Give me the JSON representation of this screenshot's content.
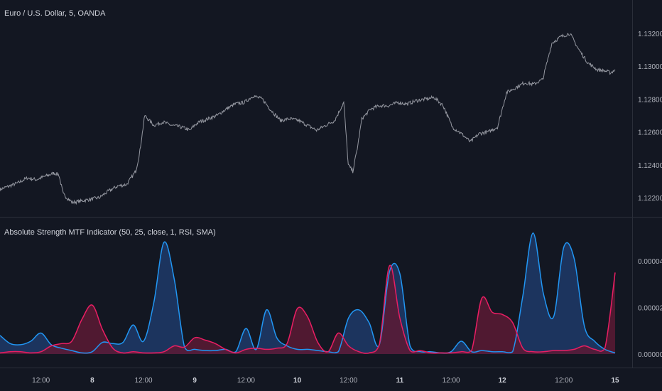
{
  "chart_data": [
    {
      "type": "line",
      "title": "Euro / U.S. Dollar, 5, OANDA",
      "xlabel": "",
      "ylabel": "",
      "ylim": [
        1.121,
        1.134
      ],
      "yticks": [
        "1.13200",
        "1.13000",
        "1.12800",
        "1.12600",
        "1.12400",
        "1.12200"
      ],
      "ytick_values": [
        1.132,
        1.13,
        1.128,
        1.126,
        1.124,
        1.122
      ],
      "grid": false,
      "color": "#9598a1",
      "x": [
        0,
        1,
        2,
        3,
        4,
        5,
        6,
        6.5,
        7,
        8,
        9,
        10,
        11,
        12,
        13,
        14,
        15,
        15.4,
        15.8,
        16,
        17,
        18,
        19,
        20,
        21,
        21.5,
        22,
        23,
        24,
        25,
        26,
        27,
        28,
        29,
        30,
        31,
        32,
        33,
        34,
        35,
        36,
        37,
        38,
        38.5,
        39,
        39.5,
        40,
        41,
        42,
        43,
        44,
        45,
        46,
        47,
        48,
        49,
        50,
        51,
        52,
        53,
        54,
        55,
        56,
        57,
        58,
        59,
        60,
        61,
        62,
        63,
        64,
        65,
        66,
        67,
        67.5,
        68
      ],
      "values": [
        1.1225,
        1.1227,
        1.1229,
        1.1232,
        1.1231,
        1.1233,
        1.1235,
        1.1234,
        1.1222,
        1.1217,
        1.1218,
        1.1219,
        1.122,
        1.1224,
        1.1227,
        1.1228,
        1.1236,
        1.1246,
        1.1262,
        1.127,
        1.1264,
        1.1266,
        1.1264,
        1.1263,
        1.1261,
        1.1264,
        1.1266,
        1.1268,
        1.127,
        1.1274,
        1.1277,
        1.1278,
        1.1282,
        1.128,
        1.1273,
        1.1267,
        1.1268,
        1.1267,
        1.1264,
        1.1261,
        1.1264,
        1.1267,
        1.1278,
        1.124,
        1.1236,
        1.125,
        1.1268,
        1.1274,
        1.1276,
        1.1276,
        1.1278,
        1.1277,
        1.1279,
        1.128,
        1.1281,
        1.1276,
        1.1263,
        1.1259,
        1.1254,
        1.1259,
        1.126,
        1.1263,
        1.1284,
        1.1287,
        1.129,
        1.1289,
        1.1292,
        1.1314,
        1.1318,
        1.132,
        1.131,
        1.1302,
        1.1298,
        1.1297,
        1.1296,
        1.1298
      ]
    },
    {
      "type": "area",
      "title": "Absolute Strength MTF Indicator (50, 25, close, 1, RSI, SMA)",
      "xlabel": "",
      "ylabel": "",
      "ylim": [
        -5e-06,
        5.5e-05
      ],
      "yticks": [
        "0.00004",
        "0.00002",
        "0.00000"
      ],
      "ytick_values": [
        4e-05,
        2e-05,
        0.0
      ],
      "grid": false,
      "xticks": [
        "12:00",
        "8",
        "12:00",
        "9",
        "12:00",
        "10",
        "12:00",
        "11",
        "12:00",
        "12",
        "12:00",
        "15"
      ],
      "xtick_positions": [
        4,
        9,
        14,
        19,
        24,
        29,
        34,
        39,
        44,
        49,
        55,
        60
      ],
      "x_max": 60,
      "series": [
        {
          "color": "#2196f3",
          "fill": "#1e3a68",
          "x": [
            0,
            1,
            2,
            3,
            4,
            5,
            6,
            7,
            8,
            9,
            10,
            11,
            12,
            13,
            14,
            15,
            16,
            17,
            18,
            19,
            20,
            21,
            22,
            23,
            24,
            25,
            26,
            27,
            28,
            29,
            30,
            31,
            32,
            33,
            34,
            35,
            36,
            37,
            38,
            39,
            40,
            41,
            42,
            43,
            44,
            45,
            46,
            47,
            48,
            49,
            50,
            51,
            52,
            53,
            54,
            55,
            56,
            57,
            58,
            59,
            60
          ],
          "values": [
            8e-06,
            4.5e-06,
            4e-06,
            5.5e-06,
            9e-06,
            4e-06,
            2.5e-06,
            1.5e-06,
            5e-07,
            1e-06,
            5e-06,
            4.5e-06,
            5e-06,
            1.25e-05,
            5.5e-06,
            2.2e-05,
            4.8e-05,
            3.2e-05,
            3e-06,
            2e-06,
            1.5e-06,
            1.5e-06,
            2e-06,
            1e-06,
            1.1e-05,
            2e-06,
            1.9e-05,
            7e-06,
            3.5e-06,
            2e-06,
            2e-06,
            1.5e-06,
            1e-06,
            1e-06,
            1.55e-05,
            1.9e-05,
            1.35e-05,
            4e-06,
            3.55e-05,
            3.45e-05,
            3.5e-06,
            1e-06,
            1e-06,
            5e-07,
            1e-06,
            5.5e-06,
            1e-06,
            1.5e-06,
            1e-06,
            1e-06,
            1e-06,
            2.5e-05,
            5.2e-05,
            2.6e-05,
            1.6e-05,
            4.6e-05,
            4.1e-05,
            1.2e-05,
            5.5e-06,
            2e-06,
            5e-07
          ]
        },
        {
          "color": "#e91e63",
          "fill": "#5c1a34",
          "x": [
            0,
            1,
            2,
            3,
            4,
            5,
            6,
            7,
            8,
            9,
            10,
            11,
            12,
            13,
            14,
            15,
            16,
            17,
            18,
            19,
            20,
            21,
            22,
            23,
            24,
            25,
            26,
            27,
            28,
            29,
            30,
            31,
            32,
            33,
            34,
            35,
            36,
            37,
            38,
            39,
            40,
            41,
            42,
            43,
            44,
            45,
            46,
            47,
            48,
            49,
            50,
            51,
            52,
            53,
            54,
            55,
            56,
            57,
            58,
            59,
            60
          ],
          "values": [
            5e-07,
            1e-06,
            1e-06,
            5e-07,
            1e-06,
            3.5e-06,
            4.5e-06,
            5.5e-06,
            1.5e-05,
            2.1e-05,
            1.05e-05,
            2.5e-06,
            5e-07,
            1e-06,
            5e-07,
            5e-07,
            1e-06,
            3.5e-06,
            3e-06,
            7e-06,
            6e-06,
            4.5e-06,
            2e-06,
            5e-07,
            2e-06,
            2.5e-06,
            2e-06,
            2.5e-06,
            4.5e-06,
            1.95e-05,
            1.6e-05,
            5e-06,
            1e-06,
            9e-06,
            3.5e-06,
            1e-06,
            5e-07,
            4e-06,
            3.8e-05,
            1.55e-05,
            1.5e-06,
            1.5e-06,
            5e-07,
            5e-07,
            5e-07,
            1e-06,
            1.5e-06,
            2.4e-05,
            1.8e-05,
            1.7e-05,
            1.35e-05,
            2.5e-06,
            1e-06,
            1e-06,
            1.5e-06,
            1.5e-06,
            2e-06,
            3.5e-06,
            2e-06,
            2.5e-06,
            3.5e-05
          ]
        }
      ]
    }
  ]
}
